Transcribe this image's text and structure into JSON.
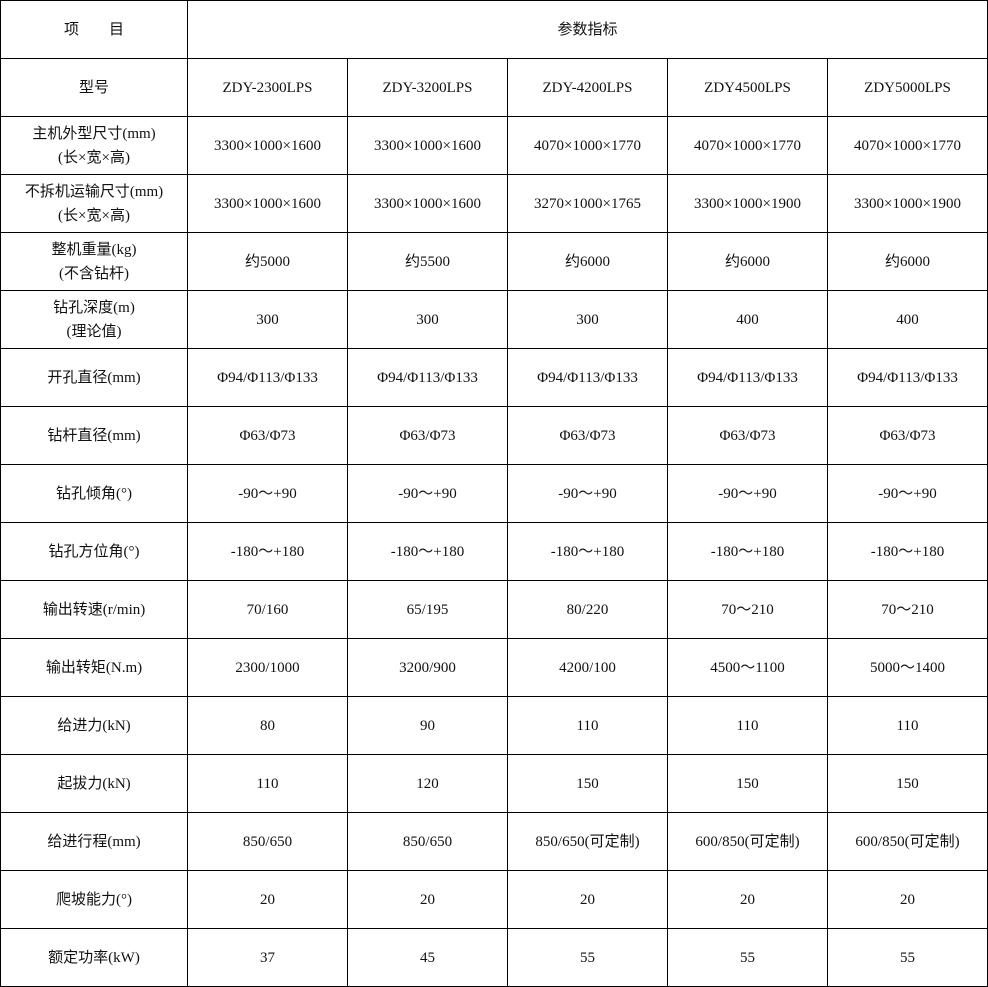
{
  "header": {
    "item_label": "项　　目",
    "params_label": "参数指标"
  },
  "rows": [
    {
      "label": "型号",
      "values": [
        "ZDY-2300LPS",
        "ZDY-3200LPS",
        "ZDY-4200LPS",
        "ZDY4500LPS",
        "ZDY5000LPS"
      ]
    },
    {
      "label": "主机外型尺寸(mm)\n(长×宽×高)",
      "values": [
        "3300×1000×1600",
        "3300×1000×1600",
        "4070×1000×1770",
        "4070×1000×1770",
        "4070×1000×1770"
      ]
    },
    {
      "label": "不拆机运输尺寸(mm)\n(长×宽×高)",
      "values": [
        "3300×1000×1600",
        "3300×1000×1600",
        "3270×1000×1765",
        "3300×1000×1900",
        "3300×1000×1900"
      ]
    },
    {
      "label": "整机重量(kg)\n(不含钻杆)",
      "values": [
        "约5000",
        "约5500",
        "约6000",
        "约6000",
        "约6000"
      ]
    },
    {
      "label": "钻孔深度(m)\n(理论值)",
      "values": [
        "300",
        "300",
        "300",
        "400",
        "400"
      ]
    },
    {
      "label": "开孔直径(mm)",
      "values": [
        "Φ94/Φ113/Φ133",
        "Φ94/Φ113/Φ133",
        "Φ94/Φ113/Φ133",
        "Φ94/Φ113/Φ133",
        "Φ94/Φ113/Φ133"
      ]
    },
    {
      "label": "钻杆直径(mm)",
      "values": [
        "Φ63/Φ73",
        "Φ63/Φ73",
        "Φ63/Φ73",
        "Φ63/Φ73",
        "Φ63/Φ73"
      ]
    },
    {
      "label": "钻孔倾角(°)",
      "values": [
        "-90～+90",
        "-90～+90",
        "-90～+90",
        "-90～+90",
        "-90～+90"
      ]
    },
    {
      "label": "钻孔方位角(°)",
      "values": [
        "-180～+180",
        "-180～+180",
        "-180～+180",
        "-180～+180",
        "-180～+180"
      ]
    },
    {
      "label": "输出转速(r/min)",
      "values": [
        "70/160",
        "65/195",
        "80/220",
        "70～210",
        "70～210"
      ]
    },
    {
      "label": "输出转矩(N.m)",
      "values": [
        "2300/1000",
        "3200/900",
        "4200/100",
        "4500～1100",
        "5000～1400"
      ]
    },
    {
      "label": "给进力(kN)",
      "values": [
        "80",
        "90",
        "110",
        "110",
        "110"
      ]
    },
    {
      "label": "起拔力(kN)",
      "values": [
        "110",
        "120",
        "150",
        "150",
        "150"
      ]
    },
    {
      "label": "给进行程(mm)",
      "values": [
        "850/650",
        "850/650",
        "850/650(可定制)",
        "600/850(可定制)",
        "600/850(可定制)"
      ]
    },
    {
      "label": "爬坡能力(°)",
      "values": [
        "20",
        "20",
        "20",
        "20",
        "20"
      ]
    },
    {
      "label": "额定功率(kW)",
      "values": [
        "37",
        "45",
        "55",
        "55",
        "55"
      ]
    }
  ]
}
